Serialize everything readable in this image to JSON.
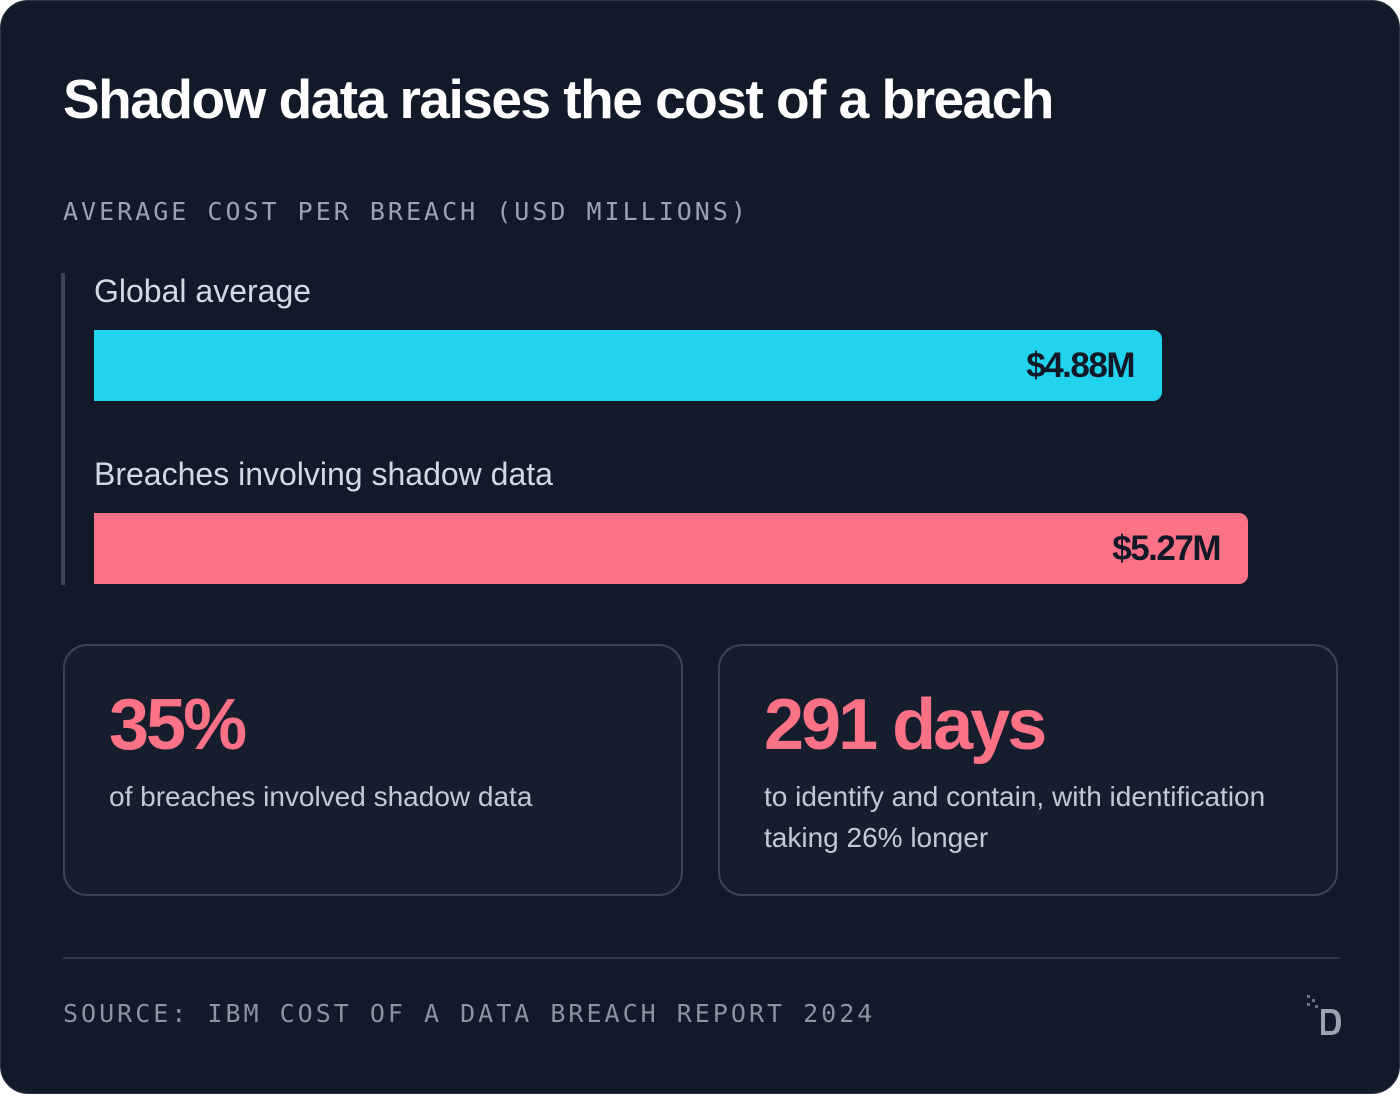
{
  "colors": {
    "background": "#121a2a",
    "global_bar": "#22d3ee",
    "shadow_bar": "#fb7185",
    "accent": "#fb7185"
  },
  "chart_data": {
    "type": "bar",
    "orientation": "horizontal",
    "title": "Shadow data raises the cost of a breach",
    "subtitle": "AVERAGE COST PER BREACH (USD MILLIONS)",
    "xlabel": "",
    "ylabel": "",
    "grid": false,
    "categories": [
      "Global average",
      "Breaches involving shadow data"
    ],
    "values": [
      4.88,
      5.27
    ],
    "data_labels": [
      "$4.88M",
      "$5.27M"
    ],
    "bar_colors": [
      "#22d3ee",
      "#fb7185"
    ],
    "xlim": [
      0,
      6.08
    ]
  },
  "stats": [
    {
      "value": "35%",
      "description": "of breaches involved shadow data"
    },
    {
      "value": "291 days",
      "description": "to identify and contain, with identification taking 26% longer"
    }
  ],
  "footer": {
    "source": "SOURCE: IBM COST OF A DATA BREACH REPORT 2024",
    "logo_icon": "d-logo-icon"
  }
}
